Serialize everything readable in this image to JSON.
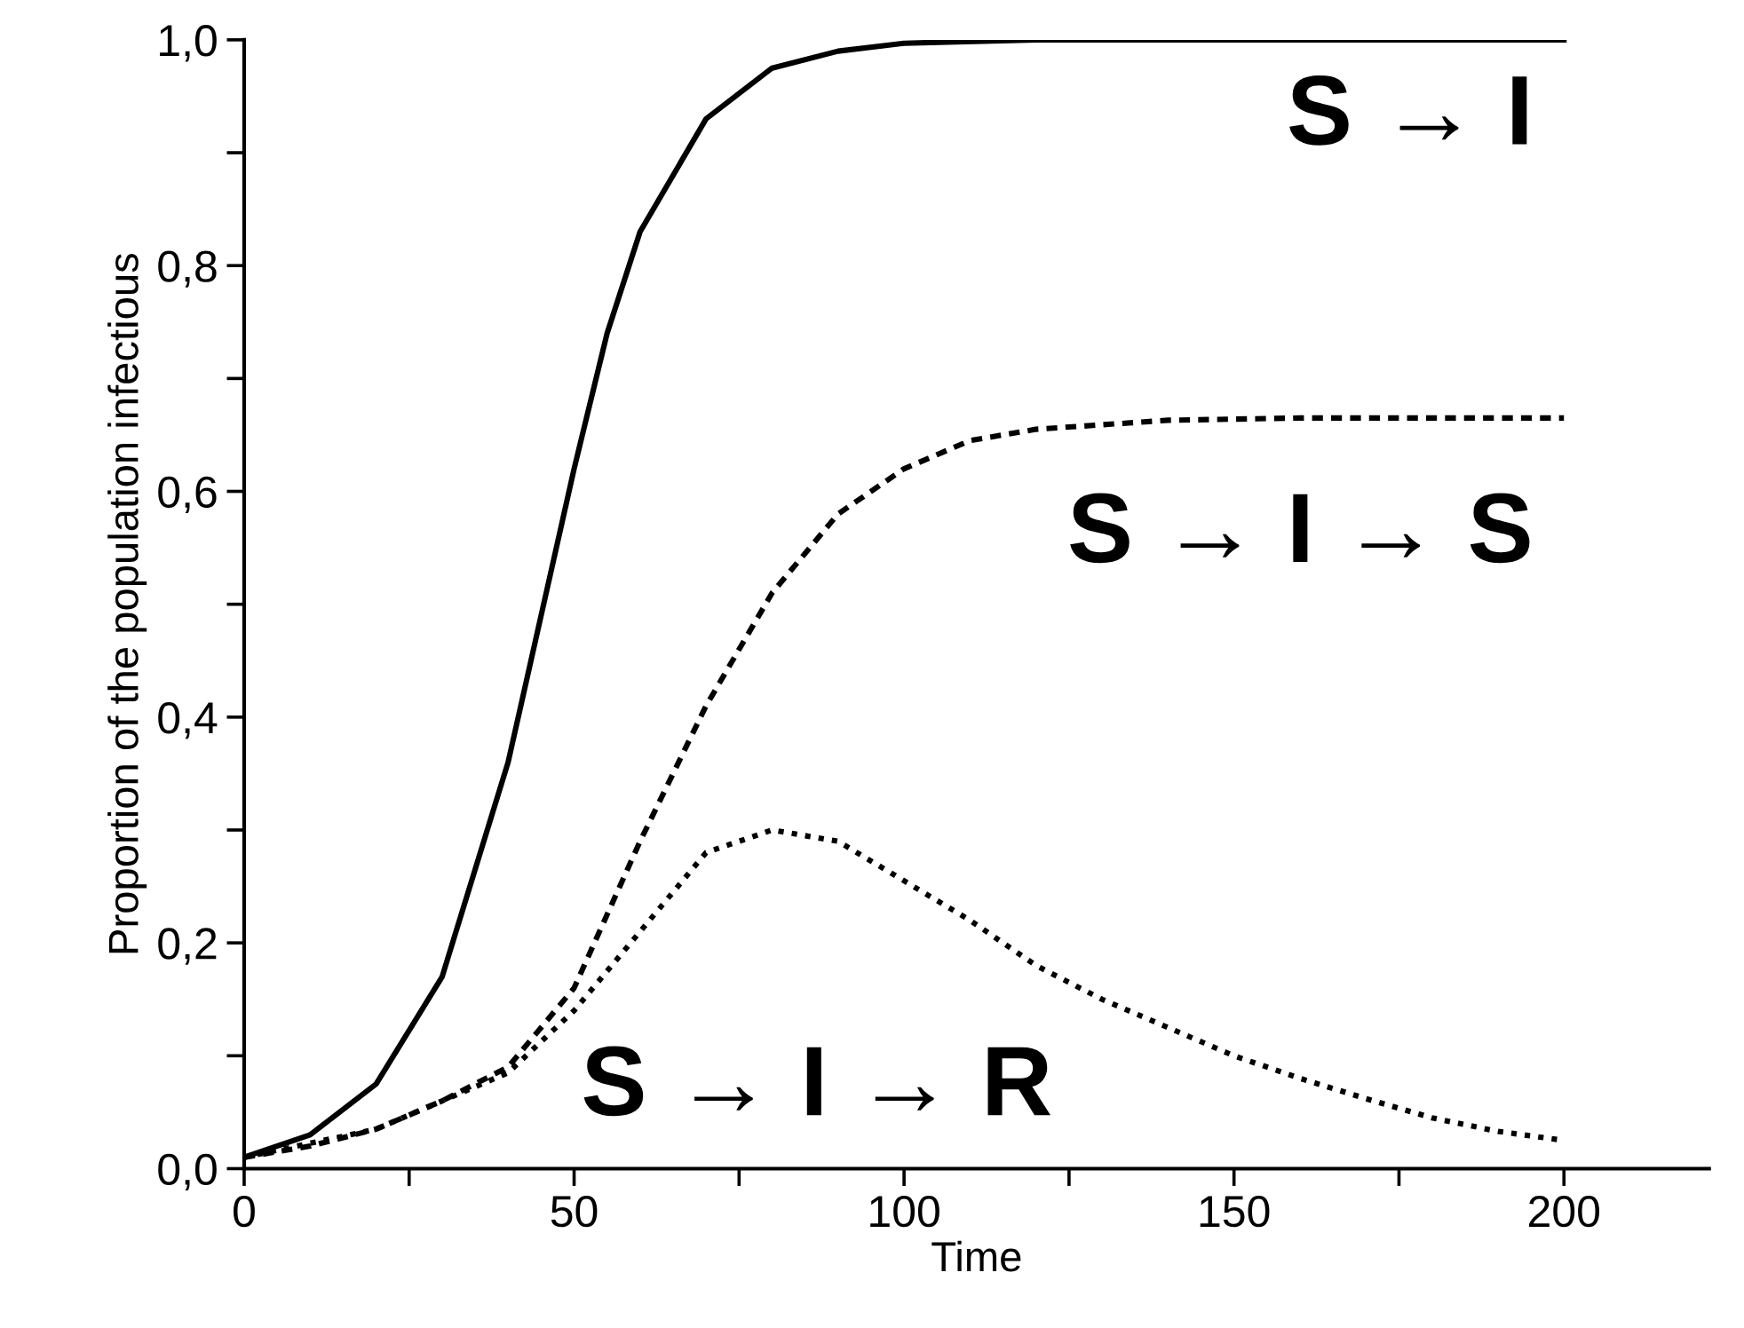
{
  "chart_data": {
    "type": "line",
    "xlabel": "Time",
    "ylabel": "Proportion of the population infectious",
    "xlim": [
      0,
      222
    ],
    "ylim": [
      0,
      1.0
    ],
    "xticks": [
      0,
      {
        "value": 25,
        "label": null
      },
      50,
      {
        "value": 75,
        "label": null
      },
      100,
      {
        "value": 125,
        "label": null
      },
      150,
      {
        "value": 175,
        "label": null
      },
      200
    ],
    "yticks": [
      {
        "value": 0,
        "label": "0,0"
      },
      {
        "value": 0.1,
        "label": null
      },
      {
        "value": 0.2,
        "label": "0,2"
      },
      {
        "value": 0.3,
        "label": null
      },
      {
        "value": 0.4,
        "label": "0,4"
      },
      {
        "value": 0.5,
        "label": null
      },
      {
        "value": 0.6,
        "label": "0,6"
      },
      {
        "value": 0.7,
        "label": null
      },
      {
        "value": 0.8,
        "label": "0,8"
      },
      {
        "value": 0.9,
        "label": null
      },
      {
        "value": 1.0,
        "label": "1,0"
      }
    ],
    "grid": false,
    "legend": false,
    "marker": "none",
    "series": [
      {
        "name": "S → I",
        "color": "#000000",
        "line_style": "solid",
        "x": [
          0,
          10,
          20,
          30,
          40,
          45,
          50,
          55,
          60,
          65,
          70,
          80,
          90,
          100,
          120,
          150,
          200
        ],
        "values": [
          0.01,
          0.03,
          0.075,
          0.17,
          0.36,
          0.49,
          0.62,
          0.74,
          0.83,
          0.88,
          0.93,
          0.975,
          0.99,
          0.997,
          1.0,
          1.0,
          1.0
        ]
      },
      {
        "name": "S → I → S",
        "color": "#000000",
        "line_style": "dashed",
        "x": [
          0,
          10,
          20,
          30,
          40,
          50,
          60,
          70,
          80,
          90,
          100,
          110,
          120,
          140,
          160,
          200
        ],
        "values": [
          0.01,
          0.02,
          0.035,
          0.06,
          0.09,
          0.16,
          0.29,
          0.41,
          0.51,
          0.58,
          0.62,
          0.645,
          0.655,
          0.663,
          0.665,
          0.665
        ]
      },
      {
        "name": "S → I → R",
        "color": "#000000",
        "line_style": "dotted",
        "x": [
          0,
          20,
          40,
          50,
          60,
          70,
          80,
          90,
          100,
          110,
          120,
          130,
          140,
          150,
          160,
          170,
          180,
          190,
          200
        ],
        "values": [
          0.01,
          0.035,
          0.085,
          0.14,
          0.21,
          0.28,
          0.3,
          0.29,
          0.255,
          0.22,
          0.18,
          0.15,
          0.125,
          0.1,
          0.08,
          0.062,
          0.045,
          0.033,
          0.025
        ]
      }
    ]
  }
}
